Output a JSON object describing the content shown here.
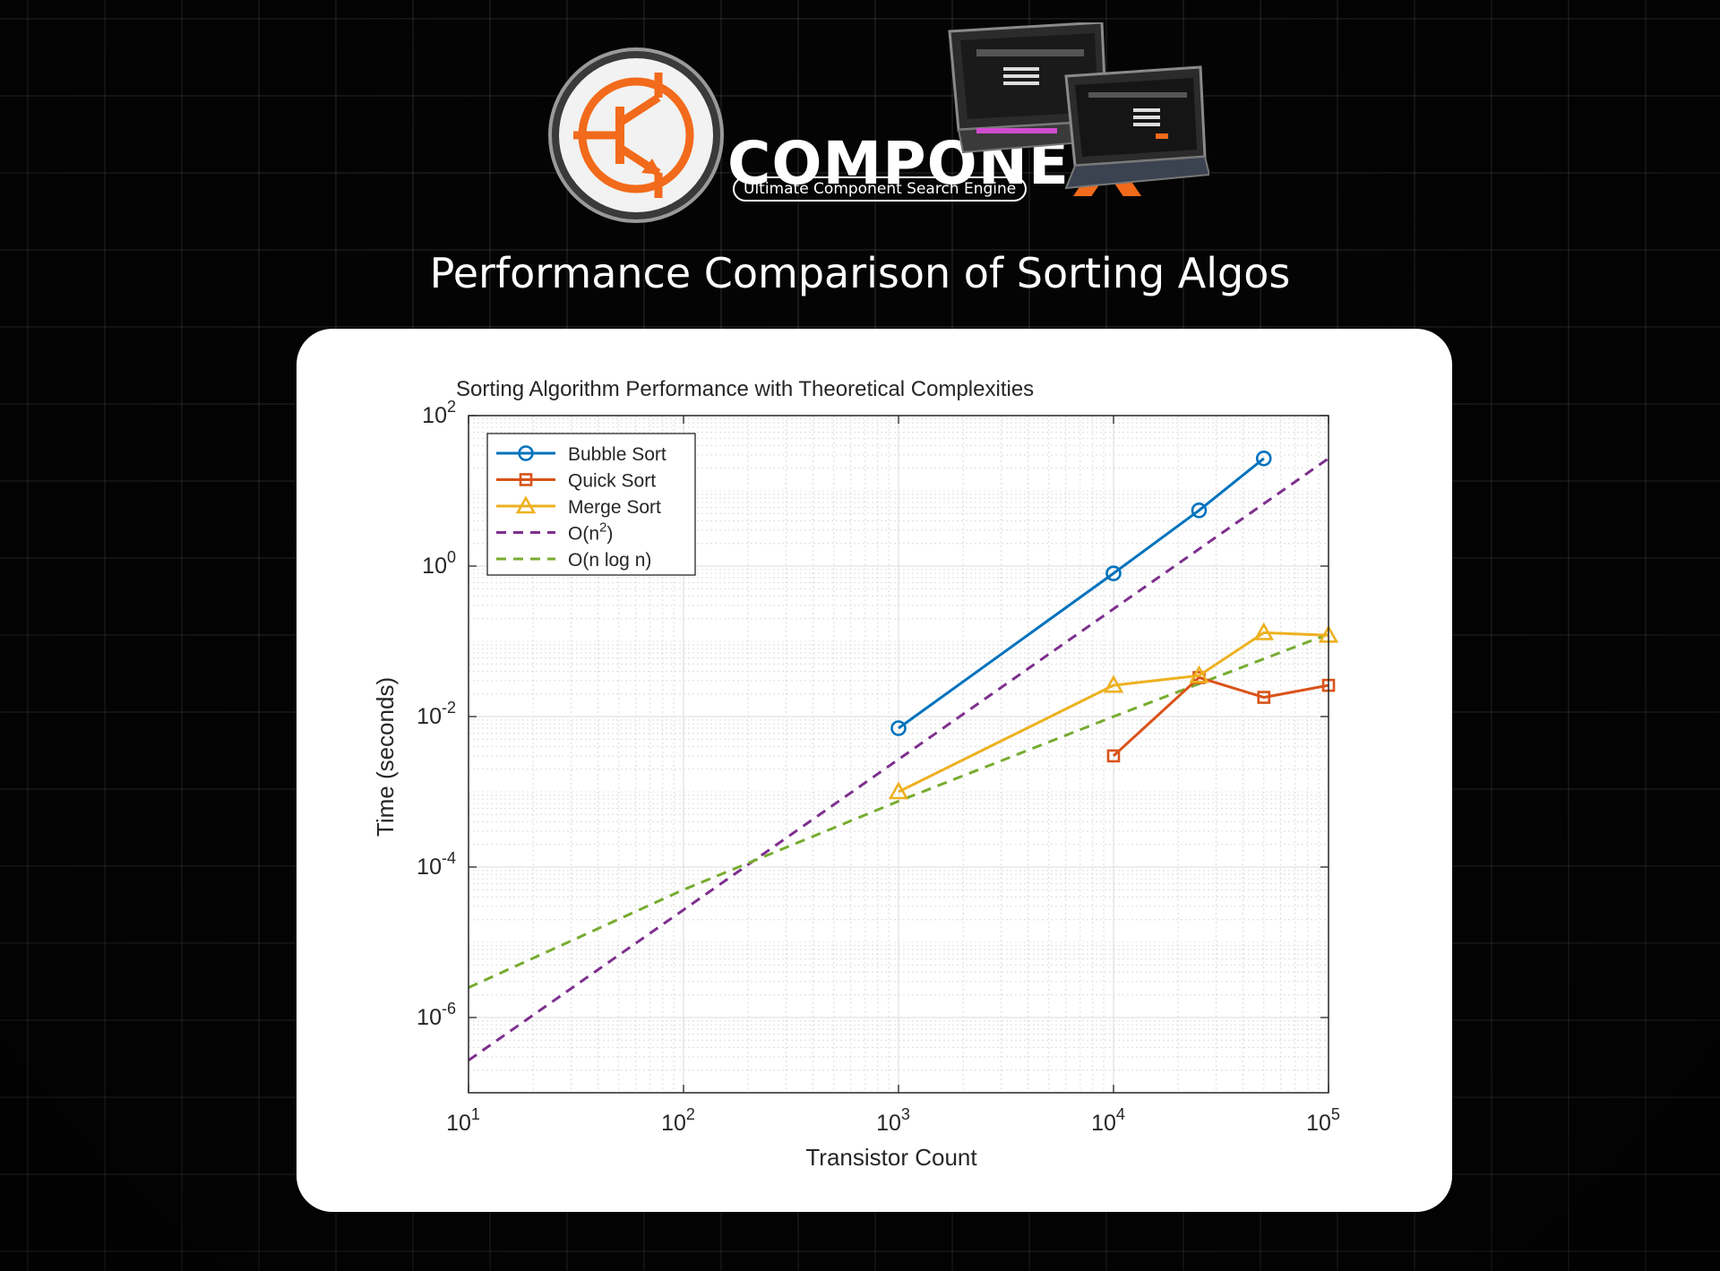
{
  "brand": {
    "name_main": "COMPONE",
    "name_accent": "X",
    "tagline": "Ultimate Component Search Engine",
    "accent_color": "#f26a1b",
    "logo_icon": "transistor-icon",
    "device_icon": "laptop-icon"
  },
  "page": {
    "heading": "Performance Comparison of Sorting Algos"
  },
  "chart_data": {
    "type": "line",
    "title": "Sorting Algorithm Performance with Theoretical Complexities",
    "xlabel": "Transistor Count",
    "ylabel": "Time (seconds)",
    "xscale": "log",
    "yscale": "log",
    "xlim": [
      10,
      100000
    ],
    "ylim": [
      1e-07,
      100
    ],
    "x_tick_values": [
      10,
      100,
      1000,
      10000,
      100000
    ],
    "x_tick_labels": [
      {
        "base": "10",
        "exp": "1"
      },
      {
        "base": "10",
        "exp": "2"
      },
      {
        "base": "10",
        "exp": "3"
      },
      {
        "base": "10",
        "exp": "4"
      },
      {
        "base": "10",
        "exp": "5"
      }
    ],
    "y_tick_values": [
      1e-06,
      0.0001,
      0.01,
      1,
      100
    ],
    "y_tick_labels": [
      {
        "base": "10",
        "exp": "-6"
      },
      {
        "base": "10",
        "exp": "-4"
      },
      {
        "base": "10",
        "exp": "-2"
      },
      {
        "base": "10",
        "exp": "0"
      },
      {
        "base": "10",
        "exp": "2"
      }
    ],
    "grid": true,
    "minor_grid": true,
    "legend_position": "top-left",
    "series": [
      {
        "name": "Bubble Sort",
        "color": "#0072bd",
        "marker": "circle",
        "dash": "solid",
        "x": [
          1000,
          10000,
          25000,
          50000
        ],
        "y": [
          0.007,
          0.8,
          5.5,
          27
        ]
      },
      {
        "name": "Quick Sort",
        "color": "#d95319",
        "marker": "square",
        "dash": "solid",
        "x": [
          10000,
          25000,
          50000,
          100000
        ],
        "y": [
          0.003,
          0.033,
          0.018,
          0.026
        ]
      },
      {
        "name": "Merge Sort",
        "color": "#edb120",
        "marker": "triangle",
        "dash": "solid",
        "x": [
          1000,
          10000,
          25000,
          50000,
          100000
        ],
        "y": [
          0.001,
          0.026,
          0.035,
          0.13,
          0.12
        ]
      },
      {
        "name": "O(n^2)",
        "legend": {
          "base": "O(n",
          "sup": "2",
          "tail": ")"
        },
        "color": "#7e2f8e",
        "marker": "none",
        "dash": "dashed",
        "x": [
          10,
          100000
        ],
        "y": [
          2.7e-07,
          27
        ]
      },
      {
        "name": "O(n log n)",
        "color": "#77ac30",
        "marker": "none",
        "dash": "dashed",
        "x": [
          10,
          100,
          1000,
          10000,
          100000
        ],
        "y": [
          2.5e-06,
          5e-05,
          0.00075,
          0.01,
          0.125
        ]
      }
    ]
  }
}
